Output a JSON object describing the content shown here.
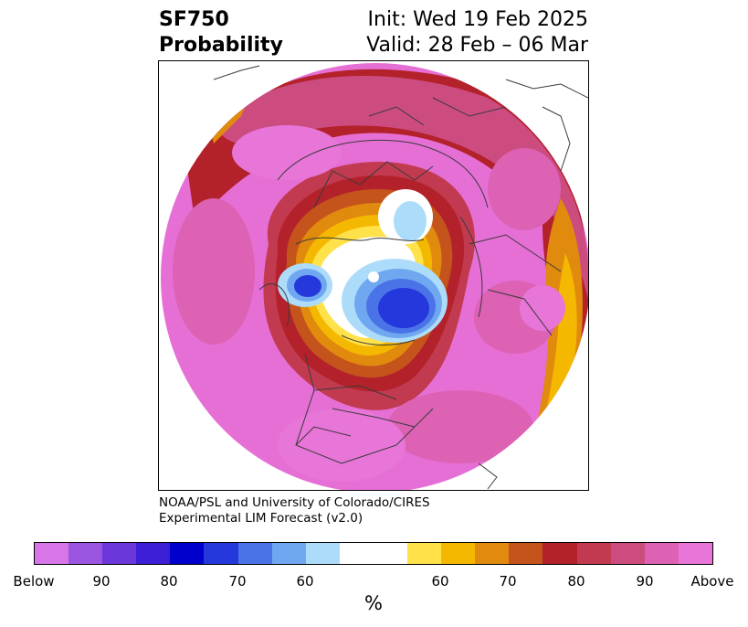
{
  "header": {
    "left_line1": "SF750",
    "left_line2": "Probability",
    "right_line1": "Init: Wed 19 Feb 2025",
    "right_line2": "Valid: 28 Feb – 06 Mar"
  },
  "credit": {
    "line1": "NOAA/PSL and University of Colorado/CIRES",
    "line2": "Experimental LIM Forecast (v2.0)"
  },
  "colorbar": {
    "colors": [
      "#d875e8",
      "#9b55e0",
      "#6b37da",
      "#3b1ed6",
      "#0000cc",
      "#2438dc",
      "#4b73e8",
      "#6fa8f0",
      "#addcfa",
      "#ffffff",
      "#ffe14a",
      "#f5b800",
      "#e08a0e",
      "#c5531c",
      "#b3222a",
      "#c23a50",
      "#cc4c80",
      "#dd62b4",
      "#e875d8"
    ],
    "tick_labels": [
      "Below",
      "90",
      "80",
      "70",
      "60",
      "60",
      "70",
      "80",
      "90",
      "Above"
    ],
    "unit": "%"
  },
  "map": {
    "projection": "north polar stereographic",
    "fill_background": "#e875d8"
  }
}
